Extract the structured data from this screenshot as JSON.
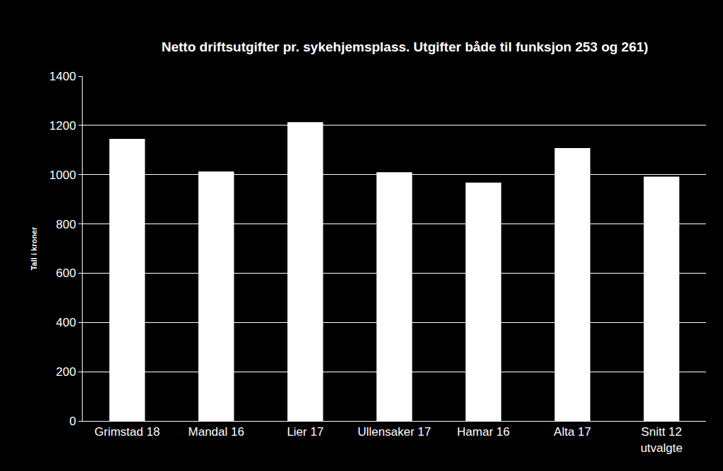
{
  "chart_data": {
    "type": "bar",
    "title": "Netto driftsutgifter pr. sykehjemsplass. Utgifter både til funksjon 253 og 261)",
    "y_label": "Tall i kroner",
    "categories": [
      "Grimstad 18",
      "Mandal 16",
      "Lier 17",
      "Ullensaker 17",
      "Hamar 16",
      "Alta 17",
      "Snitt 12 utvalgte"
    ],
    "values": [
      1145,
      1013,
      1213,
      1010,
      968,
      1108,
      992
    ],
    "color": "#ffffff",
    "ylim": [
      0,
      1400
    ],
    "yticks": [
      0,
      200,
      400,
      600,
      800,
      1000,
      1200,
      1400
    ],
    "grid": true
  }
}
